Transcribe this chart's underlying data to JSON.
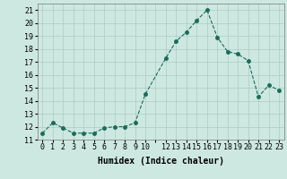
{
  "x": [
    0,
    1,
    2,
    3,
    4,
    5,
    6,
    7,
    8,
    9,
    10,
    12,
    13,
    14,
    15,
    16,
    17,
    18,
    19,
    20,
    21,
    22,
    23
  ],
  "y": [
    11.5,
    12.3,
    11.9,
    11.5,
    11.5,
    11.5,
    11.9,
    12.0,
    12.0,
    12.3,
    14.5,
    17.3,
    18.6,
    19.3,
    20.2,
    21.0,
    18.9,
    17.8,
    17.6,
    17.1,
    14.3,
    15.2,
    14.8
  ],
  "line_color": "#1a6b5a",
  "marker": "o",
  "markersize": 2.5,
  "linewidth": 0.8,
  "xlabel": "Humidex (Indice chaleur)",
  "xlim": [
    -0.5,
    23.5
  ],
  "ylim": [
    11,
    21.5
  ],
  "yticks": [
    11,
    12,
    13,
    14,
    15,
    16,
    17,
    18,
    19,
    20,
    21
  ],
  "xtick_labels": [
    "0",
    "1",
    "2",
    "3",
    "4",
    "5",
    "6",
    "7",
    "8",
    "9",
    "10",
    "",
    "12",
    "13",
    "14",
    "15",
    "16",
    "17",
    "18",
    "19",
    "20",
    "21",
    "22",
    "23"
  ],
  "xtick_positions": [
    0,
    1,
    2,
    3,
    4,
    5,
    6,
    7,
    8,
    9,
    10,
    11,
    12,
    13,
    14,
    15,
    16,
    17,
    18,
    19,
    20,
    21,
    22,
    23
  ],
  "bg_color": "#cde8e0",
  "grid_color": "#aaccc4",
  "label_fontsize": 7,
  "tick_fontsize": 6
}
